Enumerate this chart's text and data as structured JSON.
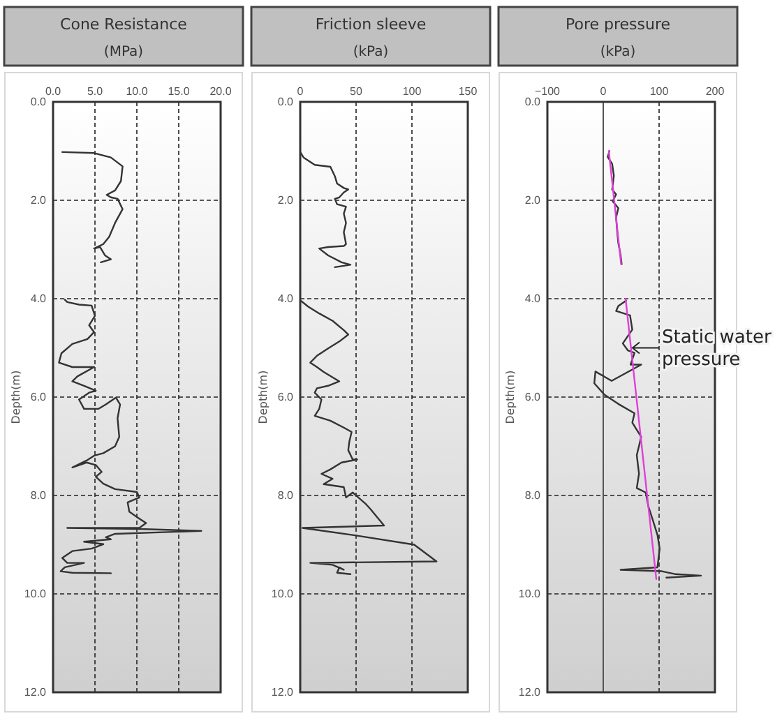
{
  "chart_data": [
    {
      "type": "line",
      "title": "Cone Resistance",
      "xlabel": "(MPa)",
      "ylabel": "Depth(m)",
      "grid": true,
      "xlim": [
        0,
        20
      ],
      "xticks": [
        {
          "value": 0,
          "label": "0.0"
        },
        {
          "value": 5,
          "label": "5.0"
        },
        {
          "value": 10,
          "label": "10.0"
        },
        {
          "value": 15,
          "label": "15.0"
        },
        {
          "value": 20,
          "label": "20.0"
        }
      ],
      "ylim": [
        12,
        0
      ],
      "yticks": [
        {
          "value": 0,
          "label": "0.0"
        },
        {
          "value": 2,
          "label": "2.0"
        },
        {
          "value": 4,
          "label": "4.0"
        },
        {
          "value": 6,
          "label": "6.0"
        },
        {
          "value": 8,
          "label": "8.0"
        },
        {
          "value": 10,
          "label": "10.0"
        },
        {
          "value": 12,
          "label": "12.0"
        }
      ],
      "series": [
        {
          "color": "#333333",
          "x": [
            1.1,
            4.9,
            6.9,
            8.3,
            8.1,
            7.4,
            6.4,
            6.9,
            7.7,
            8.3,
            7.4,
            6.7,
            6.0,
            4.9,
            5.6,
            6.2,
            6.9,
            5.7,
            null,
            1.4,
            1.7,
            3.1,
            4.6,
            5.0,
            4.3,
            4.9,
            4.1,
            2.3,
            1.0,
            0.7,
            2.3,
            4.9,
            2.9,
            2.3,
            3.7,
            5.1,
            4.3,
            3.1,
            3.7,
            5.4,
            6.3,
            7.5,
            8.0,
            7.7,
            7.9,
            7.4,
            6.0,
            4.9,
            4.0,
            2.3,
            4.0,
            5.1,
            5.8,
            5.1,
            6.0,
            7.4,
            10.0,
            10.3,
            8.9,
            9.1,
            10.3,
            11.1,
            10.3,
            1.7,
            10.3,
            17.7,
            7.4,
            6.3,
            6.9,
            3.7,
            6.0,
            4.6,
            2.3,
            1.1,
            1.7,
            3.7,
            1.4,
            0.9,
            2.3,
            6.9
          ],
          "values": [
            1.02,
            1.04,
            1.13,
            1.31,
            1.61,
            1.8,
            1.89,
            1.94,
            1.97,
            2.18,
            2.46,
            2.74,
            2.89,
            2.98,
            2.95,
            3.12,
            3.2,
            3.26,
            null,
            4.02,
            4.07,
            4.12,
            4.14,
            4.35,
            4.54,
            4.68,
            4.82,
            4.92,
            5.11,
            5.3,
            5.39,
            5.39,
            5.58,
            5.68,
            5.77,
            5.87,
            5.91,
            6.05,
            6.24,
            6.24,
            6.15,
            6.01,
            6.15,
            6.43,
            6.81,
            7.0,
            7.14,
            7.19,
            7.29,
            7.43,
            7.33,
            7.38,
            7.52,
            7.62,
            7.76,
            7.87,
            7.93,
            8.04,
            8.14,
            8.33,
            8.47,
            8.56,
            8.66,
            8.66,
            8.68,
            8.72,
            8.78,
            8.85,
            8.89,
            8.94,
            8.99,
            9.08,
            9.13,
            9.27,
            9.37,
            9.37,
            9.46,
            9.54,
            9.57,
            9.58
          ]
        }
      ]
    },
    {
      "type": "line",
      "title": "Friction sleeve",
      "xlabel": "(kPa)",
      "ylabel": "Depth(m)",
      "grid": true,
      "xlim": [
        0,
        150
      ],
      "xticks": [
        0,
        50,
        100,
        150
      ],
      "ylim": [
        12,
        0
      ],
      "yticks": [
        {
          "value": 0,
          "label": "0.0"
        },
        {
          "value": 2,
          "label": "2.0"
        },
        {
          "value": 4,
          "label": "4.0"
        },
        {
          "value": 6,
          "label": "6.0"
        },
        {
          "value": 8,
          "label": "8.0"
        },
        {
          "value": 10,
          "label": "10.0"
        },
        {
          "value": 12,
          "label": "12.0"
        }
      ],
      "series": [
        {
          "color": "#333333",
          "x": [
            0,
            3,
            13,
            27,
            31,
            33,
            39,
            43,
            39,
            35,
            31,
            33,
            41,
            39,
            41,
            39,
            41,
            39,
            25,
            17,
            25,
            37,
            45,
            31,
            null,
            1,
            7,
            17,
            29,
            39,
            43,
            35,
            25,
            15,
            9,
            15,
            21,
            35,
            25,
            15,
            13,
            19,
            17,
            13,
            27,
            39,
            46,
            44,
            43,
            47,
            51,
            37,
            27,
            19,
            29,
            21,
            39,
            41,
            47,
            59,
            63,
            75,
            2,
            49,
            102,
            122,
            9,
            29,
            39,
            35,
            33,
            45
          ],
          "values": [
            1.02,
            1.13,
            1.28,
            1.32,
            1.51,
            1.66,
            1.75,
            1.78,
            1.84,
            1.94,
            1.97,
            2.08,
            2.13,
            2.27,
            2.46,
            2.65,
            2.89,
            2.93,
            2.95,
            2.98,
            3.12,
            3.26,
            3.31,
            3.36,
            null,
            4.05,
            4.16,
            4.3,
            4.45,
            4.64,
            4.73,
            4.87,
            5.01,
            5.16,
            5.3,
            5.39,
            5.49,
            5.68,
            5.77,
            5.82,
            5.91,
            6.05,
            6.24,
            6.38,
            6.48,
            6.62,
            6.71,
            6.9,
            7.08,
            7.27,
            7.27,
            7.33,
            7.47,
            7.56,
            7.66,
            7.77,
            7.83,
            8.04,
            7.94,
            8.18,
            8.28,
            8.61,
            8.66,
            8.81,
            9.0,
            9.34,
            9.37,
            9.41,
            9.51,
            9.46,
            9.57,
            9.6
          ]
        }
      ]
    },
    {
      "type": "line",
      "title": "Pore pressure",
      "xlabel": "(kPa)",
      "ylabel": "Depth(m)",
      "grid": true,
      "xlim": [
        -100,
        200
      ],
      "xticks": [
        -100,
        0,
        100,
        200
      ],
      "ylim": [
        12,
        0
      ],
      "yticks": [
        {
          "value": 0,
          "label": "0.0"
        },
        {
          "value": 2,
          "label": "2.0"
        },
        {
          "value": 4,
          "label": "4.0"
        },
        {
          "value": 6,
          "label": "6.0"
        },
        {
          "value": 8,
          "label": "8.0"
        },
        {
          "value": 10,
          "label": "10.0"
        },
        {
          "value": 12,
          "label": "12.0"
        }
      ],
      "ref_lines": [
        {
          "axis": "x",
          "value": 0,
          "color": "#555555",
          "line_style": "solid"
        }
      ],
      "annotations": [
        {
          "text": "Static water pressure",
          "x": 50,
          "y": 5.0
        }
      ],
      "series": [
        {
          "color": "#333333",
          "x": [
            11,
            8,
            16,
            19,
            16,
            23,
            17,
            27,
            23,
            25,
            27,
            31,
            33,
            null,
            41,
            27,
            23,
            48,
            52,
            35,
            44,
            56,
            49,
            68,
            31,
            15,
            -14,
            -16,
            2,
            27,
            56,
            52,
            68,
            60,
            64,
            60,
            76,
            81,
            89,
            97,
            101,
            97,
            31,
            105,
            130,
            175,
            113
          ],
          "values": [
            1.0,
            1.12,
            1.26,
            1.5,
            1.78,
            1.88,
            2.02,
            2.16,
            2.35,
            2.64,
            2.87,
            3.11,
            3.3,
            null,
            4.04,
            4.15,
            4.25,
            4.34,
            4.63,
            4.91,
            5.05,
            5.1,
            5.34,
            5.34,
            5.57,
            5.67,
            5.48,
            5.72,
            5.95,
            6.14,
            6.33,
            6.52,
            6.81,
            7.18,
            7.56,
            7.85,
            7.94,
            8.23,
            8.51,
            8.8,
            9.08,
            9.46,
            9.51,
            9.54,
            9.6,
            9.63,
            9.67
          ]
        },
        {
          "color": "#e040d8",
          "x": [
            10,
            32,
            null,
            40,
            95
          ],
          "values": [
            1.0,
            3.3,
            null,
            4.0,
            9.7
          ]
        }
      ]
    }
  ]
}
